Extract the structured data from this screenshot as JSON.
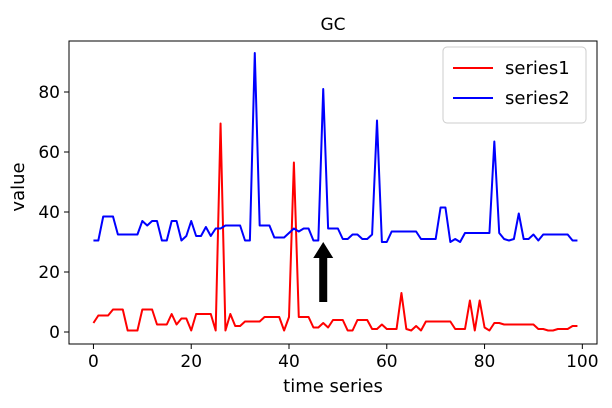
{
  "chart_data": {
    "type": "line",
    "title": "GC",
    "xlabel": "time series",
    "ylabel": "value",
    "xlim": [
      -5,
      103
    ],
    "ylim": [
      -4,
      97
    ],
    "xticks": [
      0,
      20,
      40,
      60,
      80,
      100
    ],
    "yticks": [
      0,
      20,
      40,
      60,
      80
    ],
    "grid": false,
    "legend_position": "top-right",
    "x": [
      0,
      1,
      2,
      3,
      4,
      5,
      6,
      7,
      8,
      9,
      10,
      11,
      12,
      13,
      14,
      15,
      16,
      17,
      18,
      19,
      20,
      21,
      22,
      23,
      24,
      25,
      26,
      27,
      28,
      29,
      30,
      31,
      32,
      33,
      34,
      35,
      36,
      37,
      38,
      39,
      40,
      41,
      42,
      43,
      44,
      45,
      46,
      47,
      48,
      49,
      50,
      51,
      52,
      53,
      54,
      55,
      56,
      57,
      58,
      59,
      60,
      61,
      62,
      63,
      64,
      65,
      66,
      67,
      68,
      69,
      70,
      71,
      72,
      73,
      74,
      75,
      76,
      77,
      78,
      79,
      80,
      81,
      82,
      83,
      84,
      85,
      86,
      87,
      88,
      89,
      90,
      91,
      92,
      93,
      94,
      95,
      96,
      97,
      98,
      99
    ],
    "series": [
      {
        "name": "series1",
        "color": "#ff0000",
        "values": [
          3,
          5.5,
          5.5,
          5.5,
          7.5,
          7.5,
          7.5,
          0.5,
          0.5,
          0.5,
          7.5,
          7.5,
          7.5,
          2.5,
          2.5,
          2.5,
          6,
          2.5,
          4.5,
          4.5,
          0.5,
          6,
          6,
          6,
          6,
          0.5,
          69.5,
          0.5,
          6,
          2,
          2,
          3.5,
          3.5,
          3.5,
          3.5,
          5,
          5,
          5,
          5,
          0.5,
          5,
          56.5,
          5,
          5,
          5,
          1.5,
          1.5,
          3,
          1.5,
          4,
          4,
          4,
          0.5,
          0.5,
          4,
          4,
          4,
          1,
          1,
          2.5,
          1,
          1,
          1,
          13,
          1,
          0.5,
          2,
          0.5,
          3.5,
          3.5,
          3.5,
          3.5,
          3.5,
          3.5,
          1,
          1,
          1,
          10.5,
          0.5,
          10.5,
          1.5,
          0.5,
          3,
          3,
          2.5,
          2.5,
          2.5,
          2.5,
          2.5,
          2.5,
          2.5,
          1,
          1,
          0.5,
          0.5,
          1,
          1,
          1,
          2,
          2
        ]
      },
      {
        "name": "series2",
        "color": "#0000ff",
        "values": [
          30.5,
          30.5,
          38.5,
          38.5,
          38.5,
          32.5,
          32.5,
          32.5,
          32.5,
          32.5,
          37,
          35.5,
          37,
          37,
          30.5,
          30.5,
          37,
          37,
          30.5,
          32,
          37,
          32,
          32,
          35,
          32,
          34.5,
          34.5,
          35.5,
          35.5,
          35.5,
          35.5,
          30.5,
          30.5,
          93,
          35.5,
          35.5,
          35.5,
          31.5,
          31.5,
          31.5,
          33,
          34.5,
          33.5,
          34.5,
          34.5,
          30.5,
          30.5,
          81,
          34.5,
          34.5,
          34.5,
          31,
          31,
          32.5,
          32.5,
          31,
          31,
          32.5,
          70.5,
          30,
          30,
          33.5,
          33.5,
          33.5,
          33.5,
          33.5,
          33.5,
          31,
          31,
          31,
          31,
          41.5,
          41.5,
          30,
          31,
          30,
          33,
          33,
          33,
          33,
          33,
          33,
          63.5,
          33,
          31,
          30.5,
          31,
          39.5,
          31,
          31,
          32.5,
          30.5,
          32.5,
          32.5,
          32.5,
          32.5,
          32.5,
          32.5,
          30.5,
          30.5
        ]
      }
    ],
    "annotation": {
      "type": "arrow",
      "x": 47,
      "y_tail": 10,
      "y_head": 30,
      "color": "#000000"
    }
  }
}
